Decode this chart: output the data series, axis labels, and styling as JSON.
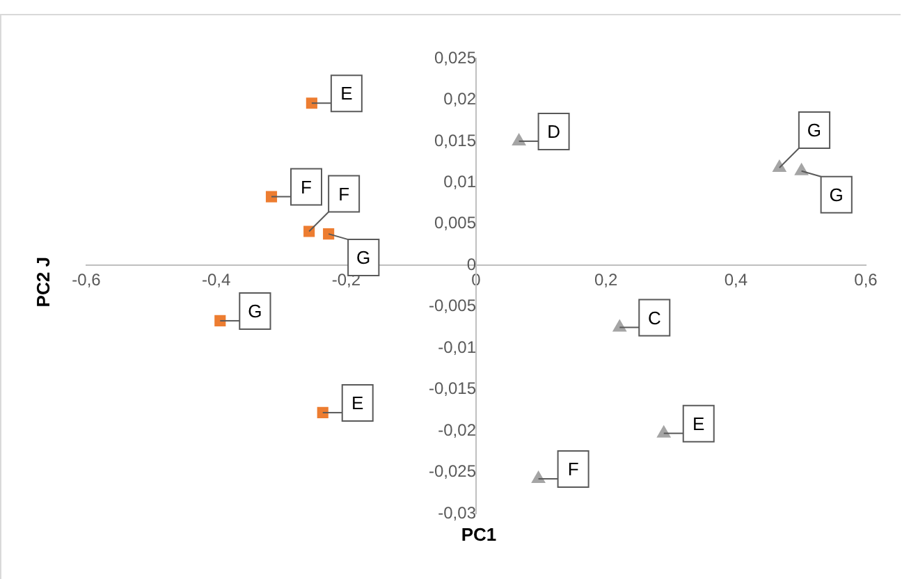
{
  "chart_data": {
    "type": "scatter",
    "xlabel": "PC1",
    "ylabel": "PC2 J",
    "xlim": [
      -0.6,
      0.6
    ],
    "xticks": [
      {
        "value": -0.6,
        "label": "-0,6"
      },
      {
        "value": -0.4,
        "label": "-0,4"
      },
      {
        "value": -0.2,
        "label": "-0,2"
      },
      {
        "value": 0,
        "label": "0"
      },
      {
        "value": 0.2,
        "label": "0,2"
      },
      {
        "value": 0.4,
        "label": "0,4"
      },
      {
        "value": 0.6,
        "label": "0,6"
      }
    ],
    "ylim": [
      -0.03,
      0.025
    ],
    "yticks": [
      {
        "value": -0.03,
        "label": "-0,03"
      },
      {
        "value": -0.025,
        "label": "-0,025"
      },
      {
        "value": -0.02,
        "label": "-0,02"
      },
      {
        "value": -0.015,
        "label": "-0,015"
      },
      {
        "value": -0.01,
        "label": "-0,01"
      },
      {
        "value": -0.005,
        "label": "-0,005"
      },
      {
        "value": 0,
        "label": "0"
      },
      {
        "value": 0.005,
        "label": "0,005"
      },
      {
        "value": 0.01,
        "label": "0,01"
      },
      {
        "value": 0.015,
        "label": "0,015"
      },
      {
        "value": 0.02,
        "label": "0,02"
      },
      {
        "value": 0.025,
        "label": "0,025"
      }
    ],
    "grid": false,
    "legend": false,
    "series": [
      {
        "color": "#ed7d31",
        "marker": "square",
        "x": [
          -0.253,
          -0.315,
          -0.257,
          -0.227,
          -0.394,
          -0.236
        ],
        "values": [
          0.0196,
          0.0083,
          0.0041,
          0.0038,
          -0.0067,
          -0.0178
        ]
      },
      {
        "color": "#a5a5a5",
        "marker": "triangle",
        "x": [
          0.066,
          0.467,
          0.501,
          0.221,
          0.289,
          0.096
        ],
        "values": [
          0.015,
          0.0118,
          0.0114,
          -0.0075,
          -0.0203,
          -0.0258
        ]
      }
    ],
    "annotations": [
      {
        "text": "E",
        "x": -0.253,
        "y": 0.0196
      },
      {
        "text": "F",
        "x": -0.315,
        "y": 0.0083
      },
      {
        "text": "F",
        "x": -0.257,
        "y": 0.0041
      },
      {
        "text": "G",
        "x": -0.227,
        "y": 0.0038
      },
      {
        "text": "G",
        "x": -0.394,
        "y": -0.0067
      },
      {
        "text": "E",
        "x": -0.236,
        "y": -0.0178
      },
      {
        "text": "D",
        "x": 0.066,
        "y": 0.015
      },
      {
        "text": "G",
        "x": 0.467,
        "y": 0.0118
      },
      {
        "text": "G",
        "x": 0.501,
        "y": 0.0114
      },
      {
        "text": "C",
        "x": 0.221,
        "y": -0.0075
      },
      {
        "text": "E",
        "x": 0.289,
        "y": -0.0203
      },
      {
        "text": "F",
        "x": 0.096,
        "y": -0.0258
      }
    ]
  }
}
